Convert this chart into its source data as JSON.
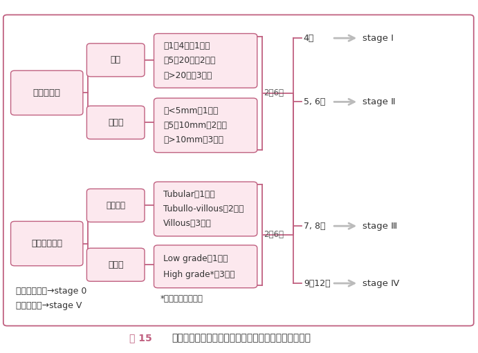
{
  "bg_color": "#ffffff",
  "border_color": "#c06080",
  "box_fill": "#fce8ee",
  "box_text_color": "#333333",
  "line_color": "#c06080",
  "arrow_color": "#bbbbbb",
  "stage_text_color": "#333333",
  "label_color": "#555555",
  "asterisk_color": "#c06080",
  "naisho_text": "内視鏡所見",
  "seiken_text": "生検組織所見",
  "kossu_text": "個数",
  "saidai_text": "最大径",
  "soshiki_text": "組織構造",
  "ikei_text": "異型度",
  "kossu_lines": [
    "・1～4個（1点）",
    "・5～20個（2点）",
    "・>20個（3点）"
  ],
  "saidai_lines": [
    "・<5mm（1点）",
    "・5～10mm（2点）",
    "・>10mm（3点）"
  ],
  "soshiki_lines": [
    "Tubular（1点）",
    "Tubullo-villous（2点）",
    "Villous（3点）"
  ],
  "ikei_lines": [
    "Low grade（1点）",
    "High grade*（3点）"
  ],
  "score_label": "2～6点",
  "stage_labels": [
    "4点",
    "5, 6点",
    "7, 8点",
    "9～12点"
  ],
  "stage_names": [
    "stage Ⅰ",
    "stage Ⅱ",
    "stage Ⅲ",
    "stage Ⅳ"
  ],
  "footnote_asterisk": "*：粘膜内癒を含む",
  "footnote1": "ポリープなし→stage 0",
  "footnote2": "（浸潤）癒→stage V",
  "caption_bold": "図 15",
  "caption_rest": "　修正スピゲルマン分類による十二指腸腕腫の評価法"
}
